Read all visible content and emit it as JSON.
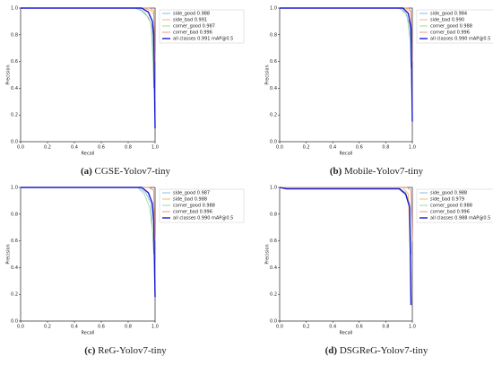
{
  "chart_data": [
    {
      "type": "line",
      "xlabel": "Recall",
      "ylabel": "Precision",
      "caption_label": "(a)",
      "caption": "CGSE-Yolov7-tiny",
      "xlim": [
        0,
        1
      ],
      "ylim": [
        0,
        1
      ],
      "xticks": [
        {
          "value": 0,
          "label": "0.0"
        },
        0.2,
        0.4,
        0.6,
        0.8,
        {
          "value": 1,
          "label": "1.0"
        }
      ],
      "yticks": [
        {
          "value": 0,
          "label": "0.0"
        },
        0.2,
        0.4,
        0.6,
        0.8,
        {
          "value": 1,
          "label": "1.0"
        }
      ],
      "series": [
        {
          "name": "side_good 0.988",
          "color": "#78b6dc",
          "x": [
            0,
            0.85,
            0.9,
            0.95,
            0.98,
            0.99
          ],
          "values": [
            1,
            1,
            0.98,
            0.93,
            0.85,
            0.4
          ]
        },
        {
          "name": "side_bad 0.991",
          "color": "#f4b060",
          "x": [
            0,
            0.92,
            0.97,
            0.99,
            1
          ],
          "values": [
            1,
            1,
            0.98,
            0.95,
            0.3
          ]
        },
        {
          "name": "corner_good 0.987",
          "color": "#98d494",
          "x": [
            0,
            0.88,
            0.93,
            0.97,
            0.99
          ],
          "values": [
            1,
            1,
            0.96,
            0.88,
            0.5
          ]
        },
        {
          "name": "corner_bad 0.996",
          "color": "#f08878",
          "x": [
            0,
            0.96,
            0.99,
            1
          ],
          "values": [
            1,
            1,
            0.98,
            0.6
          ]
        },
        {
          "name": "all classes 0.991 mAP@0.5",
          "color": "#1a1ad0",
          "x": [
            0,
            0.9,
            0.95,
            0.98,
            0.99,
            1
          ],
          "values": [
            1,
            1,
            0.97,
            0.9,
            0.8,
            0.1
          ]
        }
      ]
    },
    {
      "type": "line",
      "xlabel": "Recall",
      "ylabel": "Precision",
      "caption_label": "(b)",
      "caption": "Mobile-Yolov7-tiny",
      "xlim": [
        0,
        1
      ],
      "ylim": [
        0,
        1
      ],
      "xticks": [
        {
          "value": 0,
          "label": "0.0"
        },
        0.2,
        0.4,
        0.6,
        0.8,
        {
          "value": 1,
          "label": "1.0"
        }
      ],
      "yticks": [
        {
          "value": 0,
          "label": "0.0"
        },
        0.2,
        0.4,
        0.6,
        0.8,
        {
          "value": 1,
          "label": "1.0"
        }
      ],
      "series": [
        {
          "name": "side_good 0.984",
          "color": "#78b6dc",
          "x": [
            0,
            0.9,
            0.95,
            0.98,
            0.99
          ],
          "values": [
            1,
            1,
            0.96,
            0.88,
            0.55
          ]
        },
        {
          "name": "side_bad 0.990",
          "color": "#f4b060",
          "x": [
            0,
            0.95,
            0.99,
            1
          ],
          "values": [
            1,
            1,
            0.97,
            0.2
          ]
        },
        {
          "name": "corner_good 0.988",
          "color": "#98d494",
          "x": [
            0,
            0.92,
            0.96,
            0.99
          ],
          "values": [
            1,
            1,
            0.95,
            0.7
          ]
        },
        {
          "name": "corner_bad 0.996",
          "color": "#f08878",
          "x": [
            0,
            0.97,
            0.99,
            1
          ],
          "values": [
            1,
            1,
            0.98,
            0.6
          ]
        },
        {
          "name": "all classes 0.990 mAP@0.5",
          "color": "#1a1ad0",
          "x": [
            0,
            0.93,
            0.97,
            0.99,
            1
          ],
          "values": [
            1,
            1,
            0.96,
            0.85,
            0.15
          ]
        }
      ]
    },
    {
      "type": "line",
      "xlabel": "Recall",
      "ylabel": "Precision",
      "caption_label": "(c)",
      "caption": "ReG-Yolov7-tiny",
      "xlim": [
        0,
        1
      ],
      "ylim": [
        0,
        1
      ],
      "xticks": [
        {
          "value": 0,
          "label": "0.0"
        },
        0.2,
        0.4,
        0.6,
        0.8,
        {
          "value": 1,
          "label": "1.0"
        }
      ],
      "yticks": [
        {
          "value": 0,
          "label": "0.0"
        },
        0.2,
        0.4,
        0.6,
        0.8,
        {
          "value": 1,
          "label": "1.0"
        }
      ],
      "series": [
        {
          "name": "side_good 0.987",
          "color": "#78b6dc",
          "x": [
            0,
            0.88,
            0.93,
            0.97,
            0.99
          ],
          "values": [
            1,
            1,
            0.96,
            0.88,
            0.5
          ]
        },
        {
          "name": "side_bad 0.988",
          "color": "#f4b060",
          "x": [
            0,
            0.95,
            0.99,
            1
          ],
          "values": [
            1,
            1,
            0.98,
            0.3
          ]
        },
        {
          "name": "corner_good 0.988",
          "color": "#98d494",
          "x": [
            0,
            0.87,
            0.92,
            0.96,
            0.99
          ],
          "values": [
            1,
            1,
            0.95,
            0.85,
            0.6
          ]
        },
        {
          "name": "corner_bad 0.996",
          "color": "#f08878",
          "x": [
            0,
            0.96,
            0.99,
            1
          ],
          "values": [
            1,
            1,
            0.98,
            0.6
          ]
        },
        {
          "name": "all classes 0.990 mAP@0.5",
          "color": "#1a1ad0",
          "x": [
            0,
            0.9,
            0.95,
            0.98,
            0.99,
            1
          ],
          "values": [
            1,
            1,
            0.96,
            0.88,
            0.75,
            0.18
          ]
        }
      ]
    },
    {
      "type": "line",
      "xlabel": "Recall",
      "ylabel": "Precision",
      "caption_label": "(d)",
      "caption": "DSGReG-Yolov7-tiny",
      "xlim": [
        0,
        1
      ],
      "ylim": [
        0,
        1
      ],
      "xticks": [
        {
          "value": 0,
          "label": "0.0"
        },
        0.2,
        0.4,
        0.6,
        0.8,
        {
          "value": 1,
          "label": "1.0"
        }
      ],
      "yticks": [
        {
          "value": 0,
          "label": "0.0"
        },
        0.2,
        0.4,
        0.6,
        0.8,
        {
          "value": 1,
          "label": "1.0"
        }
      ],
      "series": [
        {
          "name": "side_good 0.988",
          "color": "#78b6dc",
          "x": [
            0,
            0.9,
            0.95,
            0.98,
            0.99
          ],
          "values": [
            1,
            1,
            0.96,
            0.88,
            0.5
          ]
        },
        {
          "name": "side_bad 0.979",
          "color": "#f4b060",
          "x": [
            0,
            0.93,
            0.97,
            0.99
          ],
          "values": [
            1,
            1,
            0.95,
            0.3
          ]
        },
        {
          "name": "corner_good 0.988",
          "color": "#98d494",
          "x": [
            0,
            0.9,
            0.95,
            0.98,
            0.99
          ],
          "values": [
            1,
            1,
            0.95,
            0.85,
            0.6
          ]
        },
        {
          "name": "corner_bad 0.996",
          "color": "#f08878",
          "x": [
            0,
            0.96,
            0.99,
            1
          ],
          "values": [
            1,
            1,
            0.98,
            0.6
          ]
        },
        {
          "name": "all classes 0.988 mAP@0.5",
          "color": "#1a1ad0",
          "x": [
            0,
            0.05,
            0.9,
            0.95,
            0.98,
            0.99
          ],
          "values": [
            1,
            0.99,
            0.99,
            0.95,
            0.85,
            0.12
          ]
        }
      ]
    }
  ]
}
